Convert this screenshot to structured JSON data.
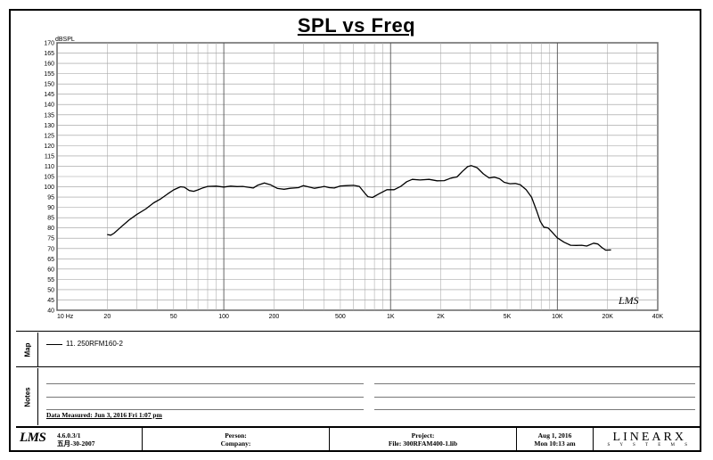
{
  "chart_data": {
    "type": "line",
    "title": "SPL vs Freq",
    "ylabel": "dBSPL",
    "xscale": "log",
    "xlim": [
      10,
      40000
    ],
    "ylim": [
      40,
      170
    ],
    "y_ticks": [
      170,
      165,
      160,
      155,
      150,
      145,
      140,
      135,
      130,
      125,
      120,
      115,
      110,
      105,
      100,
      95,
      90,
      85,
      80,
      75,
      70,
      65,
      60,
      55,
      50,
      45,
      40
    ],
    "x_ticks": [
      {
        "v": 10,
        "label": "10  Hz"
      },
      {
        "v": 20,
        "label": "20"
      },
      {
        "v": 50,
        "label": "50"
      },
      {
        "v": 100,
        "label": "100"
      },
      {
        "v": 200,
        "label": "200"
      },
      {
        "v": 500,
        "label": "500"
      },
      {
        "v": 1000,
        "label": "1K"
      },
      {
        "v": 2000,
        "label": "2K"
      },
      {
        "v": 5000,
        "label": "5K"
      },
      {
        "v": 10000,
        "label": "10K"
      },
      {
        "v": 20000,
        "label": "20K"
      },
      {
        "v": 40000,
        "label": "40K"
      }
    ],
    "series": [
      {
        "name": "11. 250RFM160-2",
        "color": "#000000",
        "points": [
          [
            20,
            76.8
          ],
          [
            21,
            76.5
          ],
          [
            22,
            77.5
          ],
          [
            24,
            80.2
          ],
          [
            27,
            83.8
          ],
          [
            30,
            86.5
          ],
          [
            34,
            89.2
          ],
          [
            38,
            92.2
          ],
          [
            42,
            94.2
          ],
          [
            46,
            96.5
          ],
          [
            50,
            98.5
          ],
          [
            55,
            100.0
          ],
          [
            58,
            99.8
          ],
          [
            62,
            98.2
          ],
          [
            66,
            97.8
          ],
          [
            70,
            98.5
          ],
          [
            75,
            99.5
          ],
          [
            80,
            100.2
          ],
          [
            90,
            100.3
          ],
          [
            100,
            99.9
          ],
          [
            110,
            100.3
          ],
          [
            120,
            100.1
          ],
          [
            130,
            100.2
          ],
          [
            150,
            99.4
          ],
          [
            160,
            100.8
          ],
          [
            175,
            101.9
          ],
          [
            190,
            101.0
          ],
          [
            210,
            99.2
          ],
          [
            230,
            98.8
          ],
          [
            250,
            99.3
          ],
          [
            280,
            99.6
          ],
          [
            300,
            100.6
          ],
          [
            320,
            100.0
          ],
          [
            350,
            99.3
          ],
          [
            380,
            99.8
          ],
          [
            400,
            100.2
          ],
          [
            430,
            99.6
          ],
          [
            460,
            99.4
          ],
          [
            500,
            100.4
          ],
          [
            550,
            100.6
          ],
          [
            600,
            100.7
          ],
          [
            650,
            100.2
          ],
          [
            700,
            97.0
          ],
          [
            730,
            95.2
          ],
          [
            780,
            94.8
          ],
          [
            850,
            96.5
          ],
          [
            950,
            98.6
          ],
          [
            1050,
            98.6
          ],
          [
            1150,
            100.2
          ],
          [
            1250,
            102.5
          ],
          [
            1350,
            103.6
          ],
          [
            1500,
            103.3
          ],
          [
            1700,
            103.6
          ],
          [
            1900,
            102.9
          ],
          [
            2100,
            103.0
          ],
          [
            2300,
            104.2
          ],
          [
            2500,
            104.8
          ],
          [
            2700,
            107.5
          ],
          [
            2900,
            109.8
          ],
          [
            3050,
            110.3
          ],
          [
            3300,
            109.3
          ],
          [
            3600,
            106.3
          ],
          [
            3900,
            104.3
          ],
          [
            4200,
            104.7
          ],
          [
            4500,
            103.9
          ],
          [
            4800,
            102.2
          ],
          [
            5200,
            101.5
          ],
          [
            5600,
            101.6
          ],
          [
            6000,
            101.0
          ],
          [
            6500,
            98.6
          ],
          [
            7000,
            95.0
          ],
          [
            7500,
            88.5
          ],
          [
            7900,
            83.2
          ],
          [
            8300,
            80.4
          ],
          [
            8800,
            80.0
          ],
          [
            9300,
            78.0
          ],
          [
            10000,
            75.2
          ],
          [
            11000,
            73.0
          ],
          [
            12000,
            71.6
          ],
          [
            13000,
            71.5
          ],
          [
            14000,
            71.6
          ],
          [
            15000,
            71.2
          ],
          [
            16500,
            72.6
          ],
          [
            17500,
            72.2
          ],
          [
            18500,
            70.5
          ],
          [
            19500,
            69.2
          ],
          [
            21000,
            69.3
          ]
        ]
      }
    ],
    "grid": true,
    "legend": "bottom-left"
  },
  "panel": {
    "map_label": "Map",
    "notes_label": "Notes",
    "legend_entry": "11. 250RFM160-2",
    "date_measured": "Data Measured: Jun 3, 2016 Fri 1:07 pm",
    "watermark": "LMS"
  },
  "footer": {
    "logo": "LMS",
    "version": "4.6.0.3/1",
    "version_date": "五月-30-2007",
    "person_label": "Person:",
    "company_label": "Company:",
    "project_label": "Project:",
    "file": "File: 300RFAM400-1.lib",
    "date": "Aug  1, 2016",
    "time": "Mon 10:13 am",
    "brand": "LINEARX",
    "brand_sub": "S Y S T E M S"
  }
}
